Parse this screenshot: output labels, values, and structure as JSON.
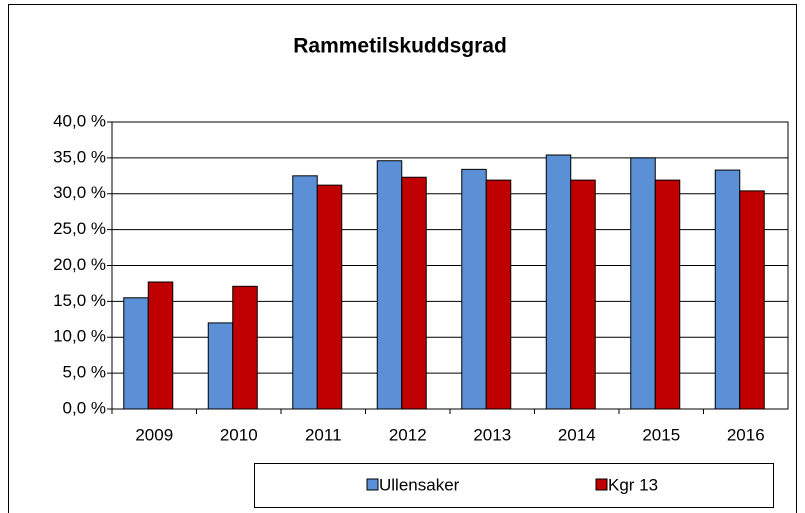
{
  "chart_data": {
    "type": "bar",
    "title": "Rammetilskuddsgrad",
    "categories": [
      "2009",
      "2010",
      "2011",
      "2012",
      "2013",
      "2014",
      "2015",
      "2016"
    ],
    "series": [
      {
        "name": "Ullensaker",
        "color": "#5b8fd6",
        "values": [
          15.5,
          12.0,
          32.5,
          34.6,
          33.4,
          35.4,
          35.0,
          33.3
        ]
      },
      {
        "name": "Kgr 13",
        "color": "#c00000",
        "values": [
          17.7,
          17.1,
          31.2,
          32.3,
          31.9,
          31.9,
          31.9,
          30.4
        ]
      }
    ],
    "ylim": [
      0,
      40
    ],
    "yticks": [
      {
        "value": 0,
        "label": "0,0 %"
      },
      {
        "value": 5,
        "label": "5,0 %"
      },
      {
        "value": 10,
        "label": "10,0 %"
      },
      {
        "value": 15,
        "label": "15,0 %"
      },
      {
        "value": 20,
        "label": "20,0 %"
      },
      {
        "value": 25,
        "label": "25,0 %"
      },
      {
        "value": 30,
        "label": "30,0 %"
      },
      {
        "value": 35,
        "label": "35,0 %"
      },
      {
        "value": 40,
        "label": "40,0 %"
      }
    ],
    "grid": true,
    "legend": "bottom"
  }
}
